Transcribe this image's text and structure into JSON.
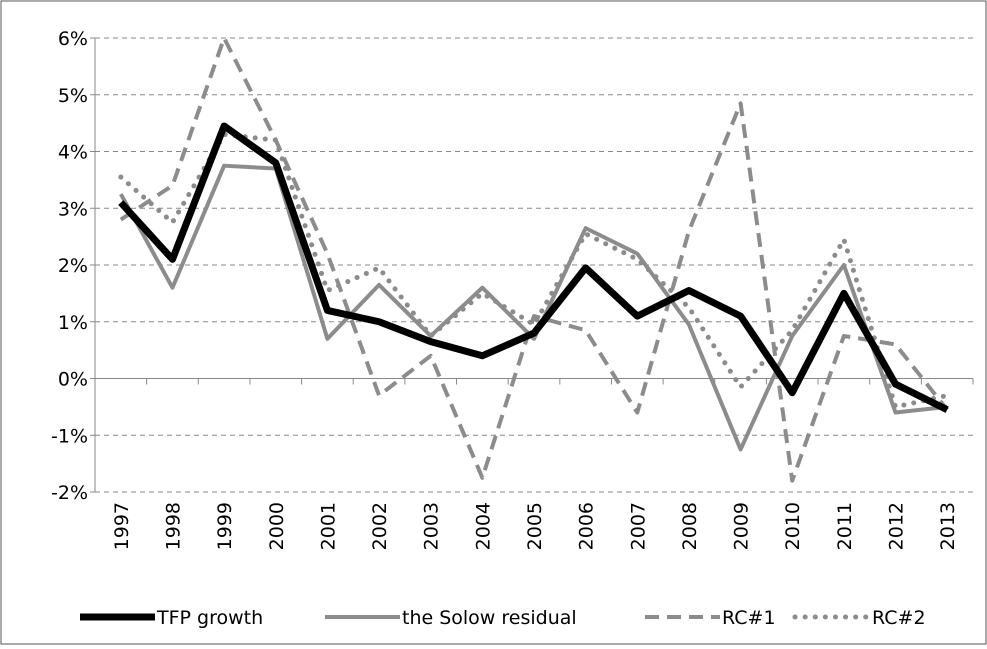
{
  "chart_data": {
    "type": "line",
    "categories": [
      "1997",
      "1998",
      "1999",
      "2000",
      "2001",
      "2002",
      "2003",
      "2004",
      "2005",
      "2006",
      "2007",
      "2008",
      "2009",
      "2010",
      "2011",
      "2012",
      "2013"
    ],
    "series": [
      {
        "name": "TFP growth",
        "color": "#000000",
        "style": "solid",
        "width": 7,
        "values": [
          3.1,
          2.1,
          4.45,
          3.8,
          1.2,
          1.0,
          0.65,
          0.4,
          0.8,
          1.95,
          1.1,
          1.55,
          1.1,
          -0.25,
          1.5,
          -0.1,
          -0.55
        ]
      },
      {
        "name": "the Solow residual",
        "color": "#8c8c8c",
        "style": "solid",
        "width": 4,
        "values": [
          3.25,
          1.6,
          3.75,
          3.7,
          0.7,
          1.65,
          0.75,
          1.6,
          0.7,
          2.65,
          2.2,
          0.95,
          -1.25,
          0.75,
          2.0,
          -0.6,
          -0.5
        ]
      },
      {
        "name": "RC#1",
        "color": "#8c8c8c",
        "style": "dashed",
        "width": 4,
        "values": [
          2.8,
          3.4,
          6.0,
          4.2,
          2.2,
          -0.3,
          0.4,
          -1.75,
          1.1,
          0.85,
          -0.6,
          2.6,
          4.85,
          -1.8,
          0.75,
          0.6,
          -0.55
        ]
      },
      {
        "name": "RC#2",
        "color": "#8c8c8c",
        "style": "dotted",
        "width": 5,
        "values": [
          3.55,
          2.75,
          4.3,
          4.2,
          1.55,
          1.95,
          0.75,
          1.5,
          0.95,
          2.55,
          2.1,
          1.25,
          -0.15,
          0.85,
          2.45,
          -0.5,
          -0.3
        ]
      }
    ],
    "ylim": [
      -2,
      6
    ],
    "yticks": [
      {
        "value": -2,
        "label": "-2%"
      },
      {
        "value": -1,
        "label": "-1%"
      },
      {
        "value": 0,
        "label": "0%"
      },
      {
        "value": 1,
        "label": "1%"
      },
      {
        "value": 2,
        "label": "2%"
      },
      {
        "value": 3,
        "label": "3%"
      },
      {
        "value": 4,
        "label": "4%"
      },
      {
        "value": 5,
        "label": "5%"
      },
      {
        "value": 6,
        "label": "6%"
      }
    ],
    "grid": true,
    "legend": "bottom"
  }
}
